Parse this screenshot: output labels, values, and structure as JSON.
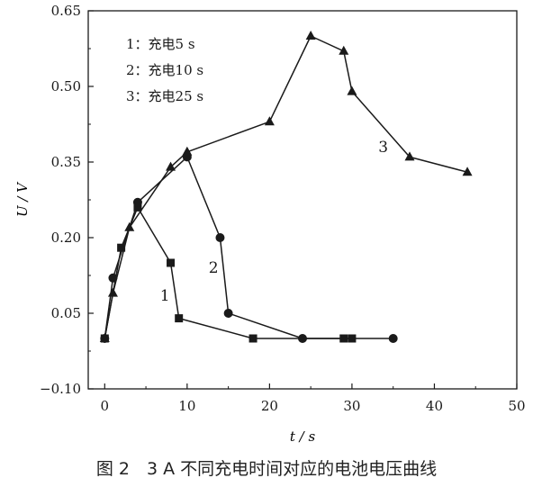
{
  "caption": "图 2　3 A 不同充电时间对应的电池电压曲线",
  "chart_data": {
    "type": "line",
    "xlabel": "t / s",
    "ylabel": "U / V",
    "xlim": [
      -2,
      50
    ],
    "ylim": [
      -0.1,
      0.65
    ],
    "xticks": [
      0,
      10,
      20,
      30,
      40,
      50
    ],
    "yticks": [
      -0.1,
      0.05,
      0.2,
      0.35,
      0.5,
      0.65
    ],
    "ytick_labels": [
      "−0.10",
      "0.05",
      "0.20",
      "0.35",
      "0.50",
      "0.65"
    ],
    "legend": {
      "placement": "top-left",
      "entries": [
        "1：充电5 s",
        "2：充电10 s",
        "3：充电25 s"
      ]
    },
    "series": [
      {
        "label": "1",
        "marker": "square",
        "x": [
          0,
          2,
          4,
          8,
          9,
          18,
          29,
          30
        ],
        "y": [
          0.0,
          0.18,
          0.26,
          0.15,
          0.04,
          0.0,
          0.0,
          0.0
        ]
      },
      {
        "label": "2",
        "marker": "circle",
        "x": [
          0,
          1,
          4,
          10,
          14,
          15,
          24,
          35
        ],
        "y": [
          0.0,
          0.12,
          0.27,
          0.36,
          0.2,
          0.05,
          0.0,
          0.0
        ]
      },
      {
        "label": "3",
        "marker": "triangle",
        "x": [
          0,
          1,
          3,
          8,
          10,
          20,
          25,
          29,
          30,
          37,
          44
        ],
        "y": [
          0.0,
          0.09,
          0.22,
          0.34,
          0.37,
          0.43,
          0.6,
          0.57,
          0.49,
          0.36,
          0.33
        ]
      }
    ],
    "color": "#1a1a1a"
  }
}
